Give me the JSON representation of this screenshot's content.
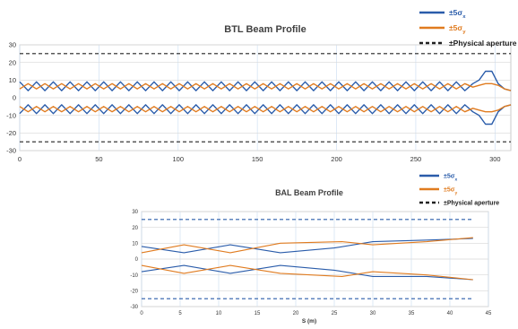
{
  "chart_data": [
    {
      "type": "line",
      "title": "BTL Beam Profile",
      "xlabel": "",
      "ylabel": "",
      "xlim": [
        0,
        310
      ],
      "ylim": [
        -30,
        30
      ],
      "x_ticks": [
        0,
        50,
        100,
        150,
        200,
        250,
        300
      ],
      "y_ticks": [
        30,
        20,
        10,
        0,
        -10,
        -20,
        -30
      ],
      "grid": true,
      "legend_position": "top-right",
      "legend": [
        {
          "label": "±5σx",
          "base": "±5σ",
          "sub": "x",
          "color": "#2a5caa",
          "style": "solid"
        },
        {
          "label": "±5σy",
          "base": "±5σ",
          "sub": "y",
          "color": "#e07b1f",
          "style": "solid"
        },
        {
          "label": "±Physical aperture",
          "base": "±Physical aperture",
          "sub": "",
          "color": "#222222",
          "style": "dashed"
        }
      ],
      "series": [
        {
          "color": "#2a5caa",
          "x": [
            0,
            5.3,
            10.6,
            15.9,
            21.2,
            26.5,
            31.8,
            37.1,
            42.4,
            47.7,
            53,
            58.3,
            63.6,
            68.9,
            74.2,
            79.5,
            84.8,
            90.1,
            95.4,
            100.7,
            106,
            111.3,
            116.6,
            121.9,
            127.2,
            132.5,
            137.8,
            143.1,
            148.4,
            153.7,
            159,
            164.3,
            169.6,
            174.9,
            180.2,
            185.5,
            190.8,
            196.1,
            201.4,
            206.7,
            212,
            217.3,
            222.6,
            227.9,
            233.2,
            238.5,
            243.8,
            249.1,
            254.4,
            259.7,
            265,
            270.3,
            275.6,
            281,
            286,
            290,
            294,
            298,
            302,
            306,
            310
          ],
          "y": [
            9,
            4,
            9,
            4,
            9,
            4,
            9,
            4,
            9,
            4,
            9,
            4,
            9,
            4,
            9,
            4,
            9,
            4,
            9,
            4,
            9,
            4,
            9,
            4,
            9,
            4,
            9,
            4,
            9,
            4,
            9,
            4,
            9,
            4,
            9,
            4,
            9,
            4,
            9,
            4,
            9,
            4,
            9,
            4,
            9,
            4,
            9,
            4,
            9,
            4,
            9,
            4,
            9,
            4,
            8,
            10,
            15,
            15,
            8,
            5,
            4
          ]
        },
        {
          "color": "#e07b1f",
          "x": [
            0,
            5.3,
            10.6,
            15.9,
            21.2,
            26.5,
            31.8,
            37.1,
            42.4,
            47.7,
            53,
            58.3,
            63.6,
            68.9,
            74.2,
            79.5,
            84.8,
            90.1,
            95.4,
            100.7,
            106,
            111.3,
            116.6,
            121.9,
            127.2,
            132.5,
            137.8,
            143.1,
            148.4,
            153.7,
            159,
            164.3,
            169.6,
            174.9,
            180.2,
            185.5,
            190.8,
            196.1,
            201.4,
            206.7,
            212,
            217.3,
            222.6,
            227.9,
            233.2,
            238.5,
            243.8,
            249.1,
            254.4,
            259.7,
            265,
            270.3,
            275.6,
            281,
            286,
            290,
            294,
            298,
            302,
            306,
            310
          ],
          "y": [
            5,
            8,
            5,
            8,
            5,
            8,
            5,
            8,
            5,
            8,
            5,
            8,
            5,
            8,
            5,
            8,
            5,
            8,
            5,
            8,
            5,
            8,
            5,
            8,
            5,
            8,
            5,
            8,
            5,
            8,
            5,
            8,
            5,
            8,
            5,
            8,
            5,
            8,
            5,
            8,
            5,
            8,
            5,
            8,
            5,
            8,
            5,
            8,
            5,
            8,
            5,
            8,
            5,
            8,
            6,
            7,
            8,
            8,
            7,
            5,
            4
          ]
        },
        {
          "color": "#2a5caa",
          "x": [
            0,
            5.3,
            10.6,
            15.9,
            21.2,
            26.5,
            31.8,
            37.1,
            42.4,
            47.7,
            53,
            58.3,
            63.6,
            68.9,
            74.2,
            79.5,
            84.8,
            90.1,
            95.4,
            100.7,
            106,
            111.3,
            116.6,
            121.9,
            127.2,
            132.5,
            137.8,
            143.1,
            148.4,
            153.7,
            159,
            164.3,
            169.6,
            174.9,
            180.2,
            185.5,
            190.8,
            196.1,
            201.4,
            206.7,
            212,
            217.3,
            222.6,
            227.9,
            233.2,
            238.5,
            243.8,
            249.1,
            254.4,
            259.7,
            265,
            270.3,
            275.6,
            281,
            286,
            290,
            294,
            298,
            302,
            306,
            310
          ],
          "y": [
            -9,
            -4,
            -9,
            -4,
            -9,
            -4,
            -9,
            -4,
            -9,
            -4,
            -9,
            -4,
            -9,
            -4,
            -9,
            -4,
            -9,
            -4,
            -9,
            -4,
            -9,
            -4,
            -9,
            -4,
            -9,
            -4,
            -9,
            -4,
            -9,
            -4,
            -9,
            -4,
            -9,
            -4,
            -9,
            -4,
            -9,
            -4,
            -9,
            -4,
            -9,
            -4,
            -9,
            -4,
            -9,
            -4,
            -9,
            -4,
            -9,
            -4,
            -9,
            -4,
            -9,
            -4,
            -8,
            -10,
            -15,
            -15,
            -8,
            -5,
            -4
          ]
        },
        {
          "color": "#e07b1f",
          "x": [
            0,
            5.3,
            10.6,
            15.9,
            21.2,
            26.5,
            31.8,
            37.1,
            42.4,
            47.7,
            53,
            58.3,
            63.6,
            68.9,
            74.2,
            79.5,
            84.8,
            90.1,
            95.4,
            100.7,
            106,
            111.3,
            116.6,
            121.9,
            127.2,
            132.5,
            137.8,
            143.1,
            148.4,
            153.7,
            159,
            164.3,
            169.6,
            174.9,
            180.2,
            185.5,
            190.8,
            196.1,
            201.4,
            206.7,
            212,
            217.3,
            222.6,
            227.9,
            233.2,
            238.5,
            243.8,
            249.1,
            254.4,
            259.7,
            265,
            270.3,
            275.6,
            281,
            286,
            290,
            294,
            298,
            302,
            306,
            310
          ],
          "y": [
            -5,
            -8,
            -5,
            -8,
            -5,
            -8,
            -5,
            -8,
            -5,
            -8,
            -5,
            -8,
            -5,
            -8,
            -5,
            -8,
            -5,
            -8,
            -5,
            -8,
            -5,
            -8,
            -5,
            -8,
            -5,
            -8,
            -5,
            -8,
            -5,
            -8,
            -5,
            -8,
            -5,
            -8,
            -5,
            -8,
            -5,
            -8,
            -5,
            -8,
            -5,
            -8,
            -5,
            -8,
            -5,
            -8,
            -5,
            -8,
            -5,
            -8,
            -5,
            -8,
            -5,
            -8,
            -6,
            -7,
            -8,
            -8,
            -7,
            -5,
            -4
          ]
        },
        {
          "color": "#222222",
          "dashed": true,
          "x": [
            0,
            310
          ],
          "y": [
            25,
            25
          ]
        },
        {
          "color": "#222222",
          "dashed": true,
          "x": [
            0,
            310
          ],
          "y": [
            -25,
            -25
          ]
        }
      ]
    },
    {
      "type": "line",
      "title": "BAL Beam Profile",
      "xlabel": "S (m)",
      "ylabel": "",
      "xlim": [
        0,
        45
      ],
      "ylim": [
        -30,
        30
      ],
      "x_ticks": [
        0,
        5,
        10,
        15,
        20,
        25,
        30,
        35,
        40,
        45
      ],
      "y_ticks": [
        30,
        20,
        10,
        0,
        -10,
        -20,
        -30
      ],
      "grid": true,
      "legend_position": "top-right",
      "legend": [
        {
          "label": "±5σx",
          "base": "±5σ",
          "sub": "x",
          "color": "#2a5caa",
          "style": "solid"
        },
        {
          "label": "±5σy",
          "base": "±5σ",
          "sub": "y",
          "color": "#e07b1f",
          "style": "solid"
        },
        {
          "label": "±Physical aperture",
          "base": "±Physical aperture",
          "sub": "",
          "color": "#222222",
          "style": "dashed"
        }
      ],
      "series": [
        {
          "color": "#2a5caa",
          "x": [
            0,
            5.5,
            11.5,
            18,
            25,
            30,
            37,
            43
          ],
          "y": [
            8,
            4,
            9,
            4,
            7,
            11,
            12,
            13
          ]
        },
        {
          "color": "#e07b1f",
          "x": [
            0,
            5.5,
            11.5,
            18,
            26,
            30,
            37,
            43
          ],
          "y": [
            4,
            9,
            4,
            10,
            11,
            9,
            11,
            13.5
          ]
        },
        {
          "color": "#2a5caa",
          "x": [
            0,
            5.5,
            11.5,
            18,
            25,
            30,
            37,
            43
          ],
          "y": [
            -8,
            -4,
            -9,
            -4,
            -7,
            -11,
            -11,
            -13
          ]
        },
        {
          "color": "#e07b1f",
          "x": [
            0,
            5.5,
            11.5,
            18,
            26,
            30,
            37,
            43
          ],
          "y": [
            -4,
            -9,
            -4,
            -9,
            -11,
            -8,
            -10,
            -13
          ]
        },
        {
          "color": "#2a5caa",
          "dashed": true,
          "x": [
            0,
            43
          ],
          "y": [
            25,
            25
          ]
        },
        {
          "color": "#2a5caa",
          "dashed": true,
          "x": [
            0,
            43
          ],
          "y": [
            -25,
            -25
          ]
        }
      ]
    }
  ]
}
